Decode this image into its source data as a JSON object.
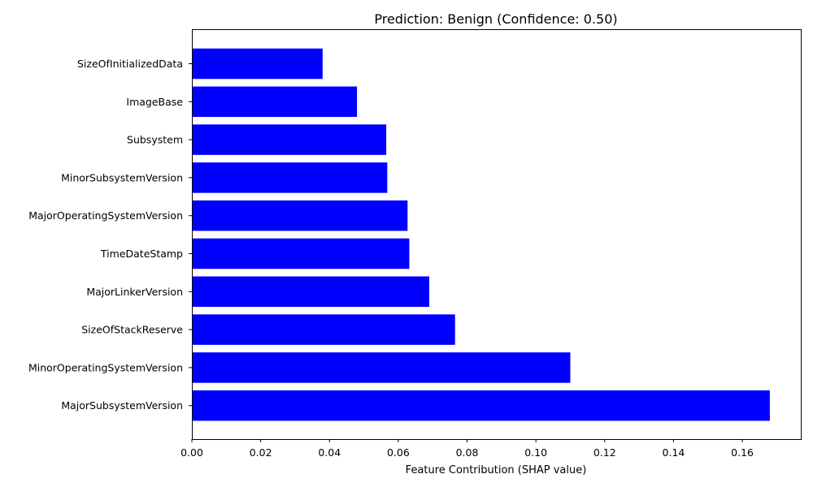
{
  "chart_data": {
    "type": "bar",
    "orientation": "horizontal",
    "title": "Prediction: Benign (Confidence: 0.50)",
    "xlabel": "Feature Contribution (SHAP value)",
    "ylabel": "",
    "xlim": [
      0,
      0.177
    ],
    "x_ticks": [
      "0.00",
      "0.02",
      "0.04",
      "0.06",
      "0.08",
      "0.10",
      "0.12",
      "0.14",
      "0.16"
    ],
    "categories": [
      "SizeOfInitializedData",
      "ImageBase",
      "Subsystem",
      "MinorSubsystemVersion",
      "MajorOperatingSystemVersion",
      "TimeDateStamp",
      "MajorLinkerVersion",
      "SizeOfStackReserve",
      "MinorOperatingSystemVersion",
      "MajorSubsystemVersion"
    ],
    "values": [
      0.038,
      0.048,
      0.0565,
      0.0568,
      0.0627,
      0.0632,
      0.069,
      0.0765,
      0.11,
      0.168
    ],
    "bar_color": "#0000ff",
    "grid": false,
    "legend": "none"
  }
}
